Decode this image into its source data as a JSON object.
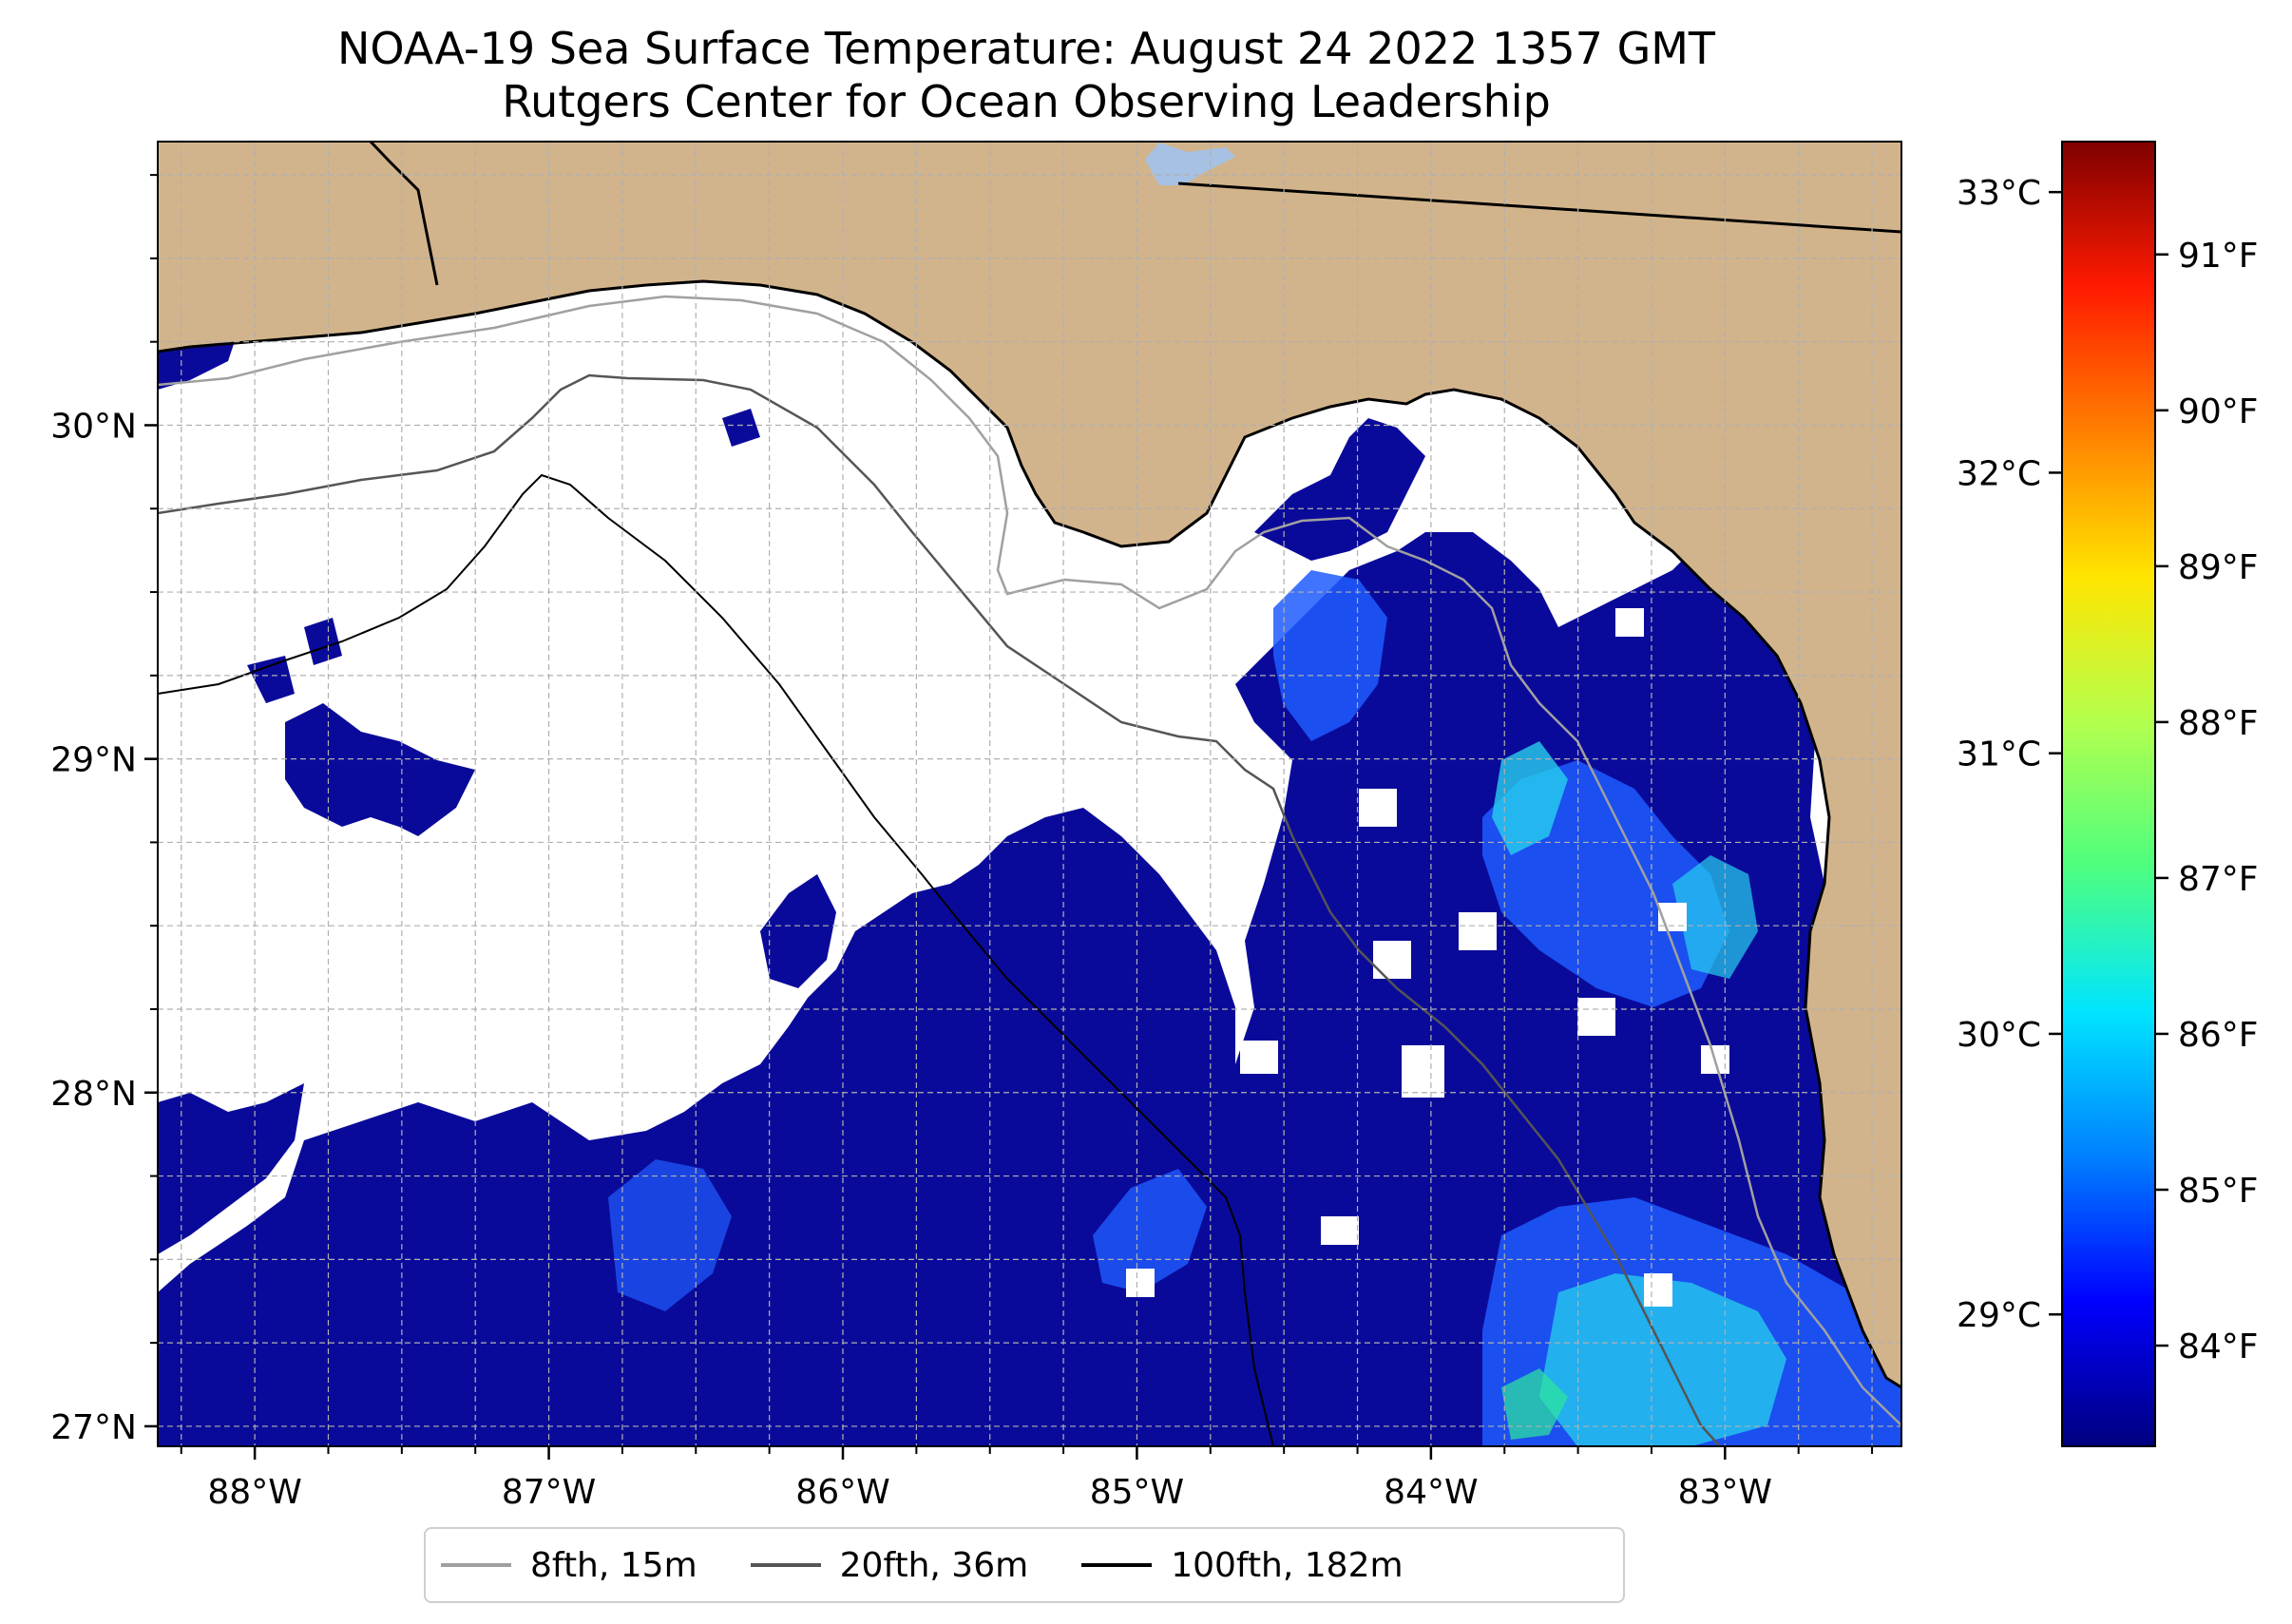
{
  "title": {
    "line1": "NOAA-19 Sea Surface Temperature: August 24 2022 1357 GMT",
    "line2": "Rutgers Center for Ocean Observing Leadership"
  },
  "map": {
    "lat_ticks": [
      {
        "value": 30,
        "label": "30°N"
      },
      {
        "value": 29,
        "label": "29°N"
      },
      {
        "value": 28,
        "label": "28°N"
      },
      {
        "value": 27,
        "label": "27°N"
      }
    ],
    "lon_ticks": [
      {
        "value": -88,
        "label": "88°W"
      },
      {
        "value": -87,
        "label": "87°W"
      },
      {
        "value": -86,
        "label": "86°W"
      },
      {
        "value": -85,
        "label": "85°W"
      },
      {
        "value": -84,
        "label": "84°W"
      },
      {
        "value": -83,
        "label": "83°W"
      }
    ],
    "extent": {
      "lon_min": -88.33,
      "lon_max": -82.4,
      "lat_min": 26.94,
      "lat_max": 30.85
    },
    "colors": {
      "land": "#d2b48c",
      "ocean_nodata": "#ffffff",
      "lake": "#a6c1e3",
      "grid": "#b0b0b0",
      "coast": "#000000"
    }
  },
  "colorbar": {
    "celsius_ticks": [
      {
        "value": 33,
        "label": "33°C"
      },
      {
        "value": 32,
        "label": "32°C"
      },
      {
        "value": 31,
        "label": "31°C"
      },
      {
        "value": 30,
        "label": "30°C"
      },
      {
        "value": 29,
        "label": "29°C"
      }
    ],
    "fahrenheit_ticks": [
      {
        "value": 91,
        "label": "91°F"
      },
      {
        "value": 90,
        "label": "90°F"
      },
      {
        "value": 89,
        "label": "89°F"
      },
      {
        "value": 88,
        "label": "88°F"
      },
      {
        "value": 87,
        "label": "87°F"
      },
      {
        "value": 86,
        "label": "86°F"
      },
      {
        "value": 85,
        "label": "85°F"
      },
      {
        "value": 84,
        "label": "84°F"
      }
    ],
    "range_c": [
      28.53,
      33.18
    ],
    "colormap": [
      "#00007f",
      "#0000ff",
      "#0080ff",
      "#00e5ff",
      "#4dff7f",
      "#b3ff4d",
      "#ffe500",
      "#ff8000",
      "#ff1a00",
      "#7f0000"
    ]
  },
  "legend": {
    "items": [
      {
        "label": "8fth, 15m",
        "color": "#a0a0a0"
      },
      {
        "label": "20fth, 36m",
        "color": "#555555"
      },
      {
        "label": "100fth, 182m",
        "color": "#000000"
      }
    ]
  }
}
